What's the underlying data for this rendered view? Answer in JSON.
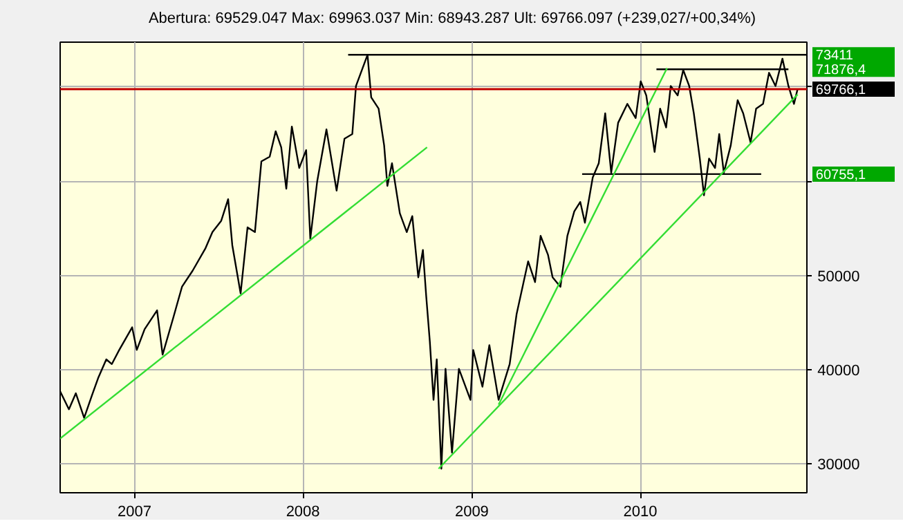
{
  "chart_data": {
    "type": "line",
    "subtitle": "Abertura: 69529.047 Max: 69963.037 Min: 68943.287 Ult: 69766.097 (+239,027/+00,34%)",
    "xlim": [
      "2006-07-24",
      "2010-12-28"
    ],
    "xticks": [
      "2007",
      "2008",
      "2009",
      "2010"
    ],
    "ylim": [
      26950,
      74750
    ],
    "yticks": [
      30000,
      40000,
      50000,
      {
        "value": 60000,
        "label": null
      },
      {
        "value": 70000,
        "label": null
      }
    ],
    "grid": true,
    "ref_lines": [
      {
        "axis": "y",
        "value": 69766.1,
        "label": "69766,1",
        "color": "#c00000"
      }
    ],
    "series": [
      {
        "color": "#000000",
        "x": [
          "2006-07-24",
          "2006-08-12",
          "2006-08-27",
          "2006-09-14",
          "2006-10-01",
          "2006-10-15",
          "2006-11-01",
          "2006-11-13",
          "2006-11-29",
          "2006-12-27",
          "2007-01-06",
          "2007-01-23",
          "2007-02-19",
          "2007-03-03",
          "2007-03-26",
          "2007-04-14",
          "2007-05-07",
          "2007-06-04",
          "2007-06-19",
          "2007-07-08",
          "2007-07-23",
          "2007-08-01",
          "2007-08-19",
          "2007-09-03",
          "2007-09-19",
          "2007-10-03",
          "2007-10-21",
          "2007-11-03",
          "2007-11-15",
          "2007-11-26",
          "2007-12-08",
          "2007-12-24",
          "2008-01-08",
          "2008-01-17",
          "2008-02-01",
          "2008-02-21",
          "2008-03-14",
          "2008-03-31",
          "2008-04-17",
          "2008-04-25",
          "2008-05-20",
          "2008-05-28",
          "2008-06-13",
          "2008-06-25",
          "2008-07-02",
          "2008-07-12",
          "2008-07-29",
          "2008-08-13",
          "2008-08-25",
          "2008-09-07",
          "2008-09-17",
          "2008-09-24",
          "2008-10-02",
          "2008-10-10",
          "2008-10-17",
          "2008-10-27",
          "2008-11-05",
          "2008-11-19",
          "2008-12-04",
          "2008-12-29",
          "2009-01-04",
          "2009-01-24",
          "2009-02-08",
          "2009-02-28",
          "2009-03-24",
          "2009-04-08",
          "2009-05-03",
          "2009-05-18",
          "2009-05-30",
          "2009-06-15",
          "2009-06-25",
          "2009-07-12",
          "2009-07-27",
          "2009-08-11",
          "2009-08-24",
          "2009-09-03",
          "2009-09-20",
          "2009-10-03",
          "2009-10-17",
          "2009-10-30",
          "2009-11-14",
          "2009-12-04",
          "2009-12-22",
          "2010-01-02",
          "2010-01-14",
          "2010-02-01",
          "2010-02-13",
          "2010-02-26",
          "2010-03-08",
          "2010-03-23",
          "2010-04-04",
          "2010-04-17",
          "2010-04-27",
          "2010-05-10",
          "2010-05-19",
          "2010-05-30",
          "2010-06-12",
          "2010-06-21",
          "2010-07-01",
          "2010-07-16",
          "2010-07-31",
          "2010-08-12",
          "2010-08-28",
          "2010-09-09",
          "2010-09-24",
          "2010-10-07",
          "2010-10-21",
          "2010-11-05",
          "2010-11-18",
          "2010-11-30",
          "2010-12-08"
        ],
        "values": [
          37700,
          35800,
          37500,
          34900,
          37300,
          39200,
          41100,
          40600,
          42100,
          44500,
          42100,
          44300,
          46300,
          41600,
          45500,
          48800,
          50500,
          52900,
          54600,
          55800,
          58100,
          53200,
          48100,
          55100,
          54600,
          62100,
          62600,
          65300,
          63600,
          59200,
          65800,
          61400,
          63300,
          53900,
          60000,
          65500,
          59000,
          64500,
          65000,
          70100,
          73400,
          68900,
          67700,
          63800,
          59500,
          61900,
          56600,
          54600,
          56300,
          49800,
          52700,
          47900,
          43000,
          36800,
          41100,
          29500,
          40100,
          31200,
          40100,
          36800,
          42100,
          38200,
          42600,
          36800,
          40600,
          45900,
          51500,
          49300,
          54200,
          52200,
          49800,
          48800,
          54200,
          56800,
          57800,
          55600,
          60400,
          61900,
          67200,
          60900,
          66200,
          68200,
          66700,
          70600,
          69100,
          63100,
          67700,
          65700,
          70100,
          69100,
          71800,
          70100,
          67200,
          62400,
          58500,
          62400,
          61400,
          65000,
          60900,
          63800,
          68600,
          67200,
          64100,
          67700,
          68200,
          71500,
          70100,
          73000,
          70100,
          68200,
          69800
        ]
      },
      {
        "name": "73411",
        "color": "#000000",
        "x": [
          "2008-04-08",
          "2010-12-28"
        ],
        "values": [
          73411,
          73411
        ]
      },
      {
        "name": "71876,4",
        "color": "#000000",
        "x": [
          "2010-02-05",
          "2010-11-18"
        ],
        "values": [
          71876.4,
          71876.4
        ]
      },
      {
        "name": "60755,1",
        "color": "#000000",
        "x": [
          "2009-08-28",
          "2010-09-20"
        ],
        "values": [
          60755.1,
          60755.1
        ]
      },
      {
        "color": "#33dd33",
        "x": [
          "2006-07-24",
          "2008-09-26"
        ],
        "values": [
          32700,
          63600
        ]
      },
      {
        "color": "#33dd33",
        "x": [
          "2008-10-21",
          "2010-12-08"
        ],
        "values": [
          29500,
          69200
        ]
      },
      {
        "color": "#33dd33",
        "x": [
          "2009-02-28",
          "2010-02-28"
        ],
        "values": [
          36300,
          72000
        ]
      }
    ]
  }
}
